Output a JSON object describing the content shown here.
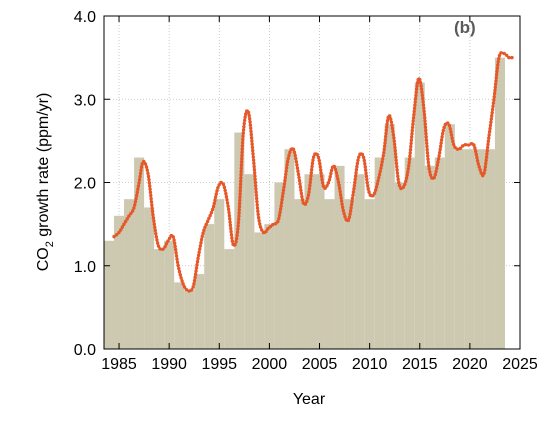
{
  "chart_data": {
    "type": "bar",
    "panel_label": "(b)",
    "xlabel": "Year",
    "ylabel_main": "CO",
    "ylabel_sub": "2",
    "ylabel_rest": " growth rate (ppm/yr)",
    "xlim": [
      1983.5,
      2025
    ],
    "ylim": [
      0,
      4
    ],
    "x_ticks": [
      1985,
      1990,
      1995,
      2000,
      2005,
      2010,
      2015,
      2020,
      2025
    ],
    "y_ticks": [
      0,
      1,
      2,
      3,
      4
    ],
    "y_tick_labels": [
      "0.0",
      "1.0",
      "2.0",
      "3.0",
      "4.0"
    ],
    "grid": true,
    "colors": {
      "bars": "#cdc8b0",
      "bar_edge": "#ffffff",
      "curve": "#e5582a",
      "panel_label": "#5a5a5a"
    },
    "annual_bars": {
      "years": [
        1984,
        1985,
        1986,
        1987,
        1988,
        1989,
        1990,
        1991,
        1992,
        1993,
        1994,
        1995,
        1996,
        1997,
        1998,
        1999,
        2000,
        2001,
        2002,
        2003,
        2004,
        2005,
        2006,
        2007,
        2008,
        2009,
        2010,
        2011,
        2012,
        2013,
        2014,
        2015,
        2016,
        2017,
        2018,
        2019,
        2020,
        2021,
        2022,
        2023,
        2024
      ],
      "values": [
        1.3,
        1.6,
        1.8,
        2.3,
        1.7,
        1.2,
        1.3,
        0.8,
        0.7,
        0.9,
        1.5,
        1.8,
        1.2,
        2.6,
        2.1,
        1.4,
        1.5,
        2.0,
        2.4,
        1.8,
        2.1,
        2.1,
        1.8,
        2.2,
        1.8,
        2.1,
        1.8,
        2.3,
        2.7,
        2.0,
        2.3,
        3.2,
        2.2,
        2.3,
        2.7,
        2.4,
        2.4,
        2.4,
        2.4,
        3.5,
        null
      ]
    },
    "monthly_curve": {
      "x": [
        1984.5,
        1985.0,
        1985.5,
        1986.0,
        1986.5,
        1987.0,
        1987.4,
        1987.9,
        1988.4,
        1988.9,
        1989.4,
        1989.9,
        1990.4,
        1990.9,
        1991.4,
        1991.9,
        1992.4,
        1992.9,
        1993.4,
        1993.9,
        1994.4,
        1994.9,
        1995.4,
        1995.9,
        1996.4,
        1996.9,
        1997.4,
        1997.9,
        1998.4,
        1998.9,
        1999.4,
        1999.9,
        2000.4,
        2000.9,
        2001.4,
        2001.9,
        2002.4,
        2002.9,
        2003.4,
        2003.9,
        2004.4,
        2004.9,
        2005.4,
        2005.9,
        2006.4,
        2006.9,
        2007.4,
        2007.9,
        2008.4,
        2008.9,
        2009.4,
        2009.9,
        2010.4,
        2010.9,
        2011.4,
        2011.9,
        2012.4,
        2012.9,
        2013.4,
        2013.9,
        2014.4,
        2014.9,
        2015.4,
        2015.9,
        2016.4,
        2016.9,
        2017.4,
        2017.9,
        2018.4,
        2018.9,
        2019.4,
        2019.9,
        2020.4,
        2020.9,
        2021.4,
        2021.9,
        2022.4,
        2022.9,
        2023.4,
        2023.9,
        2024.2
      ],
      "y": [
        1.35,
        1.4,
        1.5,
        1.6,
        1.7,
        2.0,
        2.25,
        2.1,
        1.6,
        1.25,
        1.2,
        1.3,
        1.35,
        1.0,
        0.78,
        0.7,
        0.75,
        1.1,
        1.4,
        1.55,
        1.7,
        1.95,
        1.98,
        1.7,
        1.25,
        1.5,
        2.6,
        2.85,
        2.3,
        1.6,
        1.4,
        1.45,
        1.5,
        1.55,
        1.9,
        2.3,
        2.4,
        2.1,
        1.75,
        1.85,
        2.3,
        2.3,
        1.95,
        2.0,
        2.2,
        2.0,
        1.65,
        1.55,
        1.9,
        2.3,
        2.3,
        1.9,
        1.85,
        2.05,
        2.35,
        2.8,
        2.55,
        2.0,
        1.95,
        2.2,
        2.8,
        3.25,
        2.9,
        2.2,
        2.05,
        2.3,
        2.65,
        2.7,
        2.45,
        2.4,
        2.45,
        2.45,
        2.45,
        2.2,
        2.1,
        2.55,
        3.0,
        3.5,
        3.55,
        3.5,
        3.5
      ]
    }
  }
}
